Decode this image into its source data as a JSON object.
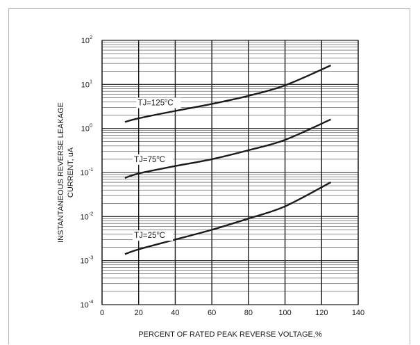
{
  "chart_data": {
    "type": "line",
    "title": "",
    "xlabel": "PERCENT OF RATED PEAK REVERSE VOLTAGE,%",
    "ylabel": [
      "INSTANTANEOUS REVERSE LEAKAGE",
      "CURRENT, uA"
    ],
    "xlim": [
      0,
      140
    ],
    "ylim": [
      0.0001,
      100
    ],
    "yscale": "log",
    "grid": true,
    "x_ticks": [
      "0",
      "20",
      "40",
      "60",
      "80",
      "100",
      "120",
      "140"
    ],
    "y_ticks": [
      {
        "base": "10",
        "exp": "2"
      },
      {
        "base": "10",
        "exp": "1"
      },
      {
        "base": "10",
        "exp": "0"
      },
      {
        "base": "10",
        "exp": "-1"
      },
      {
        "base": "10",
        "exp": "-2"
      },
      {
        "base": "10",
        "exp": "-3"
      },
      {
        "base": "10",
        "exp": "-4"
      }
    ],
    "series": [
      {
        "name": "TJ=125°C",
        "label": {
          "main": "TJ=125",
          "degree": "o",
          "unit": "C"
        },
        "x": [
          12.5,
          20,
          40,
          60,
          80,
          100,
          125
        ],
        "y": [
          1.4,
          1.7,
          2.5,
          3.6,
          5.5,
          9.5,
          27
        ]
      },
      {
        "name": "TJ=75°C",
        "label": {
          "main": "TJ=75",
          "degree": "o",
          "unit": "C"
        },
        "x": [
          12.5,
          20,
          40,
          60,
          80,
          100,
          125
        ],
        "y": [
          0.075,
          0.095,
          0.14,
          0.2,
          0.32,
          0.55,
          1.6
        ]
      },
      {
        "name": "TJ=25°C",
        "label": {
          "main": "TJ=25",
          "degree": "o",
          "unit": "C"
        },
        "x": [
          12.5,
          20,
          40,
          60,
          80,
          100,
          125
        ],
        "y": [
          0.0014,
          0.0018,
          0.003,
          0.005,
          0.009,
          0.017,
          0.06
        ]
      }
    ],
    "colors": {
      "line": "#1a1a1a",
      "grid": "#1a1a1a",
      "frame": "#b4b4b4"
    }
  }
}
